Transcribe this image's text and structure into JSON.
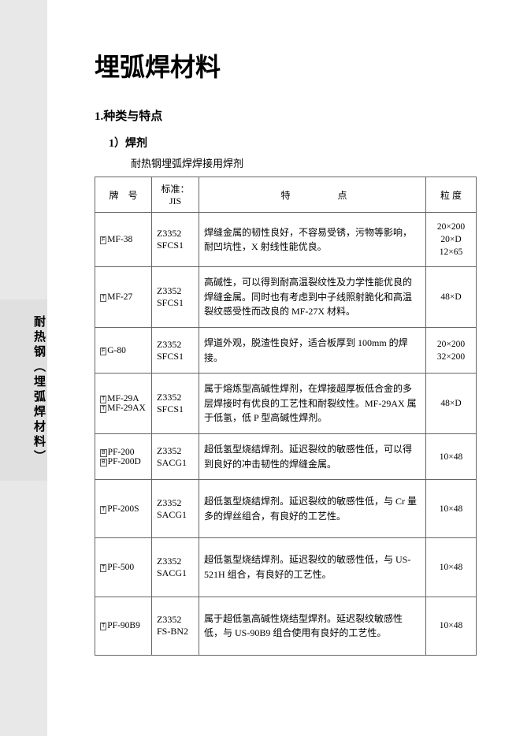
{
  "title": "埋弧焊材料",
  "section1": "1.种类与特点",
  "sub1": "1）焊剂",
  "sub1desc": "耐热钢埋弧焊焊接用焊剂",
  "sideLabel": "耐热钢（埋弧焊材料）",
  "headers": {
    "brand": "牌　号",
    "std": "标准：JIS",
    "feat": "特点",
    "grain": "粒 度"
  },
  "rows": [
    {
      "brandPrefix": [
        "F"
      ],
      "brandNames": [
        "MF-38"
      ],
      "std": "Z3352\nSFCS1",
      "feat": "焊缝金属的韧性良好，不容易受锈，污物等影响，耐凹坑性，X 射线性能优良。",
      "grain": "20×200\n20×D\n12×65"
    },
    {
      "brandPrefix": [
        "T"
      ],
      "brandNames": [
        "MF-27"
      ],
      "std": "Z3352\nSFCS1",
      "feat": "高碱性，可以得到耐高温裂纹性及力学性能优良的焊缝金属。同时也有考虑到中子线照射脆化和高温裂纹感受性而改良的 MF-27X 材料。",
      "grain": "48×D"
    },
    {
      "brandPrefix": [
        "F"
      ],
      "brandNames": [
        "G-80"
      ],
      "std": "Z3352\nSFCS1",
      "feat": "焊道外观，脱渣性良好，适合板厚到 100mm 的焊接。",
      "grain": "20×200\n32×200"
    },
    {
      "brandPrefix": [
        "T",
        "T"
      ],
      "brandNames": [
        "MF-29A",
        "MF-29AX"
      ],
      "std": "Z3352\nSFCS1",
      "feat": "属于熔炼型高碱性焊剂，在焊接超厚板低合金的多层焊接时有优良的工艺性和耐裂纹性。MF-29AX 属于低氢，低 P 型高碱性焊剂。",
      "grain": "48×D"
    },
    {
      "brandPrefix": [
        "B",
        "B"
      ],
      "brandNames": [
        "PF-200",
        "PF-200D"
      ],
      "std": "Z3352\nSACG1",
      "feat": "超低氢型烧结焊剂。延迟裂纹的敏感性低，可以得到良好的冲击韧性的焊缝金属。",
      "grain": "10×48"
    },
    {
      "brandPrefix": [
        "T"
      ],
      "brandNames": [
        "PF-200S"
      ],
      "std": "Z3352\nSACG1",
      "feat": "超低氢型烧结焊剂。延迟裂纹的敏感性低，与 Cr 量多的焊丝组合，有良好的工艺性。",
      "grain": "10×48",
      "tall": true
    },
    {
      "brandPrefix": [
        "T"
      ],
      "brandNames": [
        "PF-500"
      ],
      "std": "Z3352\nSACG1",
      "feat": "超低氢型烧结焊剂。延迟裂纹的敏感性低，与 US-521H 组合，有良好的工艺性。",
      "grain": "10×48",
      "tall": true
    },
    {
      "brandPrefix": [
        "T"
      ],
      "brandNames": [
        "PF-90B9"
      ],
      "std": "Z3352\nFS-BN2",
      "feat": "属于超低氢高碱性烧结型焊剂。延迟裂纹敏感性低，与 US-90B9 组合使用有良好的工艺性。",
      "grain": "10×48",
      "tall": true
    }
  ]
}
